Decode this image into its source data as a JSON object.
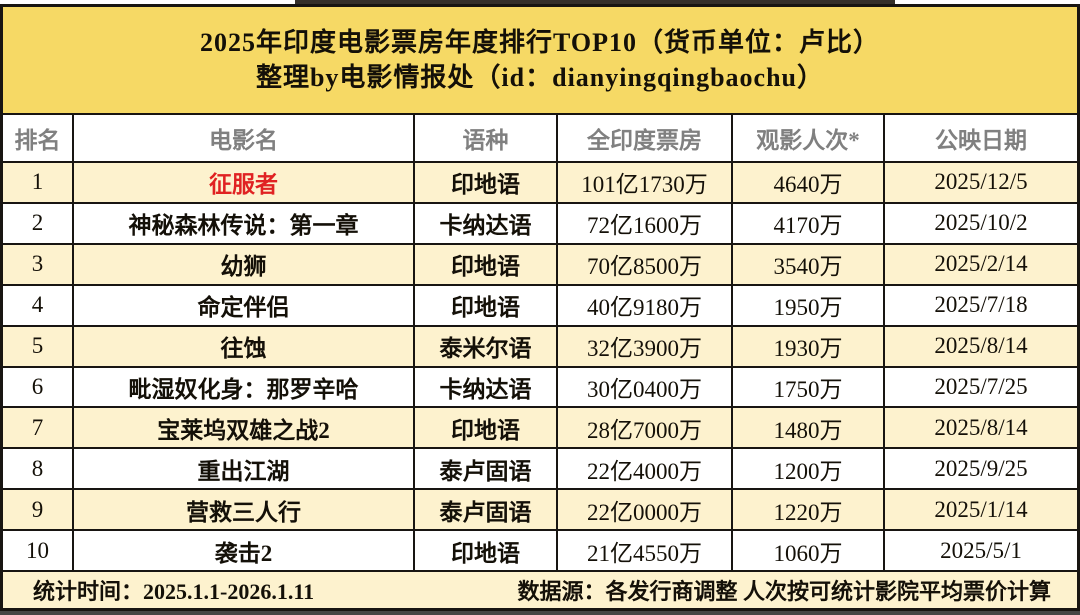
{
  "title": {
    "line1": "2025年印度电影票房年度排行TOP10（货币单位：卢比）",
    "line2": "整理by电影情报处（id：dianyingqingbaochu）"
  },
  "table": {
    "columns": [
      "排名",
      "电影名",
      "语种",
      "全印度票房",
      "观影人次*",
      "公映日期"
    ],
    "rows": [
      {
        "rank": "1",
        "movie": "征服者",
        "language": "印地语",
        "box_office": "101亿1730万",
        "admissions": "4640万",
        "release_date": "2025/12/5",
        "highlight": true
      },
      {
        "rank": "2",
        "movie": "神秘森林传说：第一章",
        "language": "卡纳达语",
        "box_office": "72亿1600万",
        "admissions": "4170万",
        "release_date": "2025/10/2",
        "highlight": false
      },
      {
        "rank": "3",
        "movie": "幼狮",
        "language": "印地语",
        "box_office": "70亿8500万",
        "admissions": "3540万",
        "release_date": "2025/2/14",
        "highlight": false
      },
      {
        "rank": "4",
        "movie": "命定伴侣",
        "language": "印地语",
        "box_office": "40亿9180万",
        "admissions": "1950万",
        "release_date": "2025/7/18",
        "highlight": false
      },
      {
        "rank": "5",
        "movie": "往蚀",
        "language": "泰米尔语",
        "box_office": "32亿3900万",
        "admissions": "1930万",
        "release_date": "2025/8/14",
        "highlight": false
      },
      {
        "rank": "6",
        "movie": "毗湿奴化身：那罗辛哈",
        "language": "卡纳达语",
        "box_office": "30亿0400万",
        "admissions": "1750万",
        "release_date": "2025/7/25",
        "highlight": false
      },
      {
        "rank": "7",
        "movie": "宝莱坞双雄之战2",
        "language": "印地语",
        "box_office": "28亿7000万",
        "admissions": "1480万",
        "release_date": "2025/8/14",
        "highlight": false
      },
      {
        "rank": "8",
        "movie": "重出江湖",
        "language": "泰卢固语",
        "box_office": "22亿4000万",
        "admissions": "1200万",
        "release_date": "2025/9/25",
        "highlight": false
      },
      {
        "rank": "9",
        "movie": "营救三人行",
        "language": "泰卢固语",
        "box_office": "22亿0000万",
        "admissions": "1220万",
        "release_date": "2025/1/14",
        "highlight": false
      },
      {
        "rank": "10",
        "movie": "袭击2",
        "language": "印地语",
        "box_office": "21亿4550万",
        "admissions": "1060万",
        "release_date": "2025/5/1",
        "highlight": false
      }
    ]
  },
  "footer": {
    "stat_time": "统计时间：2025.1.1-2026.1.11",
    "source": "数据源：各发行商调整 人次按可统计影院平均票价计算"
  },
  "colors": {
    "title_bg": "#f6d965",
    "row_alt_bg": "#fdf2ce",
    "header_text": "#808080",
    "highlight_text": "#e02222",
    "border": "#181512"
  }
}
